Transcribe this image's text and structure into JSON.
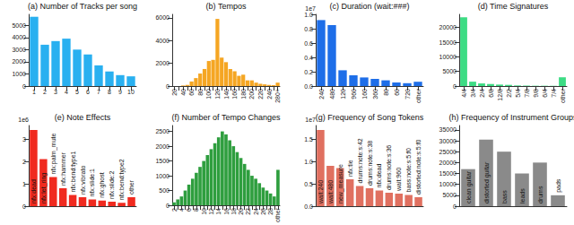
{
  "chart_data": [
    {
      "type": "bar",
      "title": "(a) Number of Tracks per song",
      "color": "#29b0f0",
      "grid": false,
      "categories": [
        "1",
        "2",
        "3",
        "4",
        "5",
        "6",
        "7",
        "8",
        "9",
        "10"
      ],
      "values": [
        5700,
        3400,
        3700,
        3900,
        3000,
        2600,
        1700,
        1200,
        900,
        800
      ],
      "ylim": [
        0,
        5900
      ],
      "yticks": [
        0,
        1000,
        2000,
        3000,
        4000,
        5000
      ]
    },
    {
      "type": "bar",
      "title": "(b) Tempos",
      "color": "#f5a623",
      "grid": false,
      "categories": [
        "20",
        null,
        "40",
        null,
        "60",
        null,
        "80",
        null,
        "100",
        null,
        "120",
        null,
        "140",
        null,
        "160",
        null,
        "180",
        null,
        "200",
        null,
        "220",
        null,
        "240",
        null,
        "280+"
      ],
      "values": [
        0,
        0,
        50,
        100,
        400,
        700,
        1100,
        1500,
        2200,
        2300,
        5900,
        2500,
        2100,
        1500,
        1300,
        900,
        1000,
        500,
        500,
        300,
        200,
        150,
        100,
        80,
        300
      ],
      "ylim": [
        0,
        6300
      ],
      "yticks": [
        0,
        2000,
        4000,
        6000
      ]
    },
    {
      "type": "bar",
      "title": "(c) Duration (wait:###)",
      "color": "#1e6ee8",
      "grid": false,
      "annotations": [
        "1e7"
      ],
      "categories": [
        "240",
        "480",
        "120",
        "960",
        "160",
        "360",
        "80",
        "60",
        "720",
        "other"
      ],
      "values": [
        0.92,
        0.85,
        0.22,
        0.15,
        0.12,
        0.1,
        0.08,
        0.05,
        0.04,
        0.06
      ],
      "ylim": [
        0,
        1.0
      ],
      "yticks": [
        {
          "value": 0,
          "label": "0.0"
        },
        {
          "value": 0.2,
          "label": "0.2"
        },
        {
          "value": 0.4,
          "label": "0.4"
        },
        {
          "value": 0.6,
          "label": "0.6"
        },
        {
          "value": 0.8,
          "label": "0.8"
        },
        {
          "value": 1.0,
          "label": "1.0"
        }
      ]
    },
    {
      "type": "bar",
      "title": "(d) Time Signatures",
      "color": "#3ddc84",
      "grid": false,
      "categories": [
        "4/4",
        "3/4",
        "2/4",
        "6/8",
        "12/8",
        "2/2",
        "5/4",
        "7/8",
        "9/8",
        "6/4",
        "7/4",
        "other"
      ],
      "values": [
        23500,
        1500,
        900,
        700,
        500,
        400,
        200,
        150,
        100,
        100,
        80,
        3000
      ],
      "ylim": [
        0,
        24500
      ],
      "yticks": [
        0,
        5000,
        10000,
        15000,
        20000
      ]
    },
    {
      "type": "bar",
      "title": "(e) Note Effects",
      "color": "#f02a1f",
      "grid": false,
      "annotations": [
        "1e6"
      ],
      "tick_labels": "y",
      "categories": [
        "nfx:dead",
        "nfx:let_ring",
        "nfx:palm_mute",
        "nfx:hammer",
        "nfx:bend:type1",
        "nfx:vibrato",
        "nfx:slide:1",
        "nfx:ghost",
        "nfx:slide:2",
        "nfx:bend:type2",
        "other"
      ],
      "values": [
        3.4,
        2.1,
        1.3,
        0.8,
        0.5,
        0.4,
        0.3,
        0.25,
        0.2,
        0.15,
        0.4
      ],
      "ylim": [
        0,
        3.6
      ],
      "yticks": [
        0,
        1,
        2,
        3
      ]
    },
    {
      "type": "bar",
      "title": "(f) Number of Tempo Changes",
      "color": "#2e9e3e",
      "grid": false,
      "categories": [
        "2",
        null,
        "4",
        null,
        "6",
        null,
        "8",
        null,
        "10",
        null,
        "12",
        null,
        "14",
        null,
        "16",
        null,
        "18",
        null,
        "20",
        null,
        "22",
        null,
        "24",
        null,
        "26",
        null,
        "28",
        null,
        "other"
      ],
      "values": [
        100,
        200,
        300,
        500,
        700,
        900,
        1100,
        1300,
        1500,
        1700,
        1900,
        2100,
        2300,
        2500,
        2400,
        2200,
        2000,
        1800,
        1600,
        1400,
        1200,
        1000,
        900,
        750,
        600,
        500,
        400,
        300,
        1200
      ],
      "ylim": [
        0,
        2700
      ],
      "yticks": [
        0,
        500,
        1000,
        1500,
        2000,
        2500
      ]
    },
    {
      "type": "bar",
      "title": "(g) Frequency of Song Tokens",
      "color": "#e07060",
      "grid": false,
      "annotations": [
        "1e7"
      ],
      "tick_labels": "y",
      "categories": [
        "wait:240",
        "wait:480",
        "new_measure",
        "nfx:tie",
        "drums:note:s:42",
        "drums:note:s:38",
        "nfx:dead",
        "drums:note:s:36",
        "wait:960",
        "bass:note:s:5:f0",
        "distorted:note:s:5:f0"
      ],
      "values": [
        1.7,
        0.9,
        0.85,
        0.6,
        0.45,
        0.4,
        0.35,
        0.3,
        0.28,
        0.25,
        0.2
      ],
      "ylim": [
        0,
        1.8
      ],
      "yticks": [
        {
          "value": 0,
          "label": "0.0"
        },
        {
          "value": 0.5,
          "label": "0.5"
        },
        {
          "value": 1.0,
          "label": "1.0"
        },
        {
          "value": 1.5,
          "label": "1.5"
        }
      ]
    },
    {
      "type": "bar",
      "title": "(h) Frequency of Instrument Groups",
      "color": "#8a8a8a",
      "grid": false,
      "tick_labels": "y",
      "categories": [
        "clean guitar",
        "distorted guitar",
        "bass",
        "leads",
        "drums",
        "pads"
      ],
      "values": [
        17000,
        30500,
        25000,
        15000,
        20000,
        5000
      ],
      "ylim": [
        0,
        37000
      ],
      "yticks": [
        0,
        5000,
        10000,
        15000,
        20000,
        25000,
        30000,
        35000
      ]
    }
  ]
}
